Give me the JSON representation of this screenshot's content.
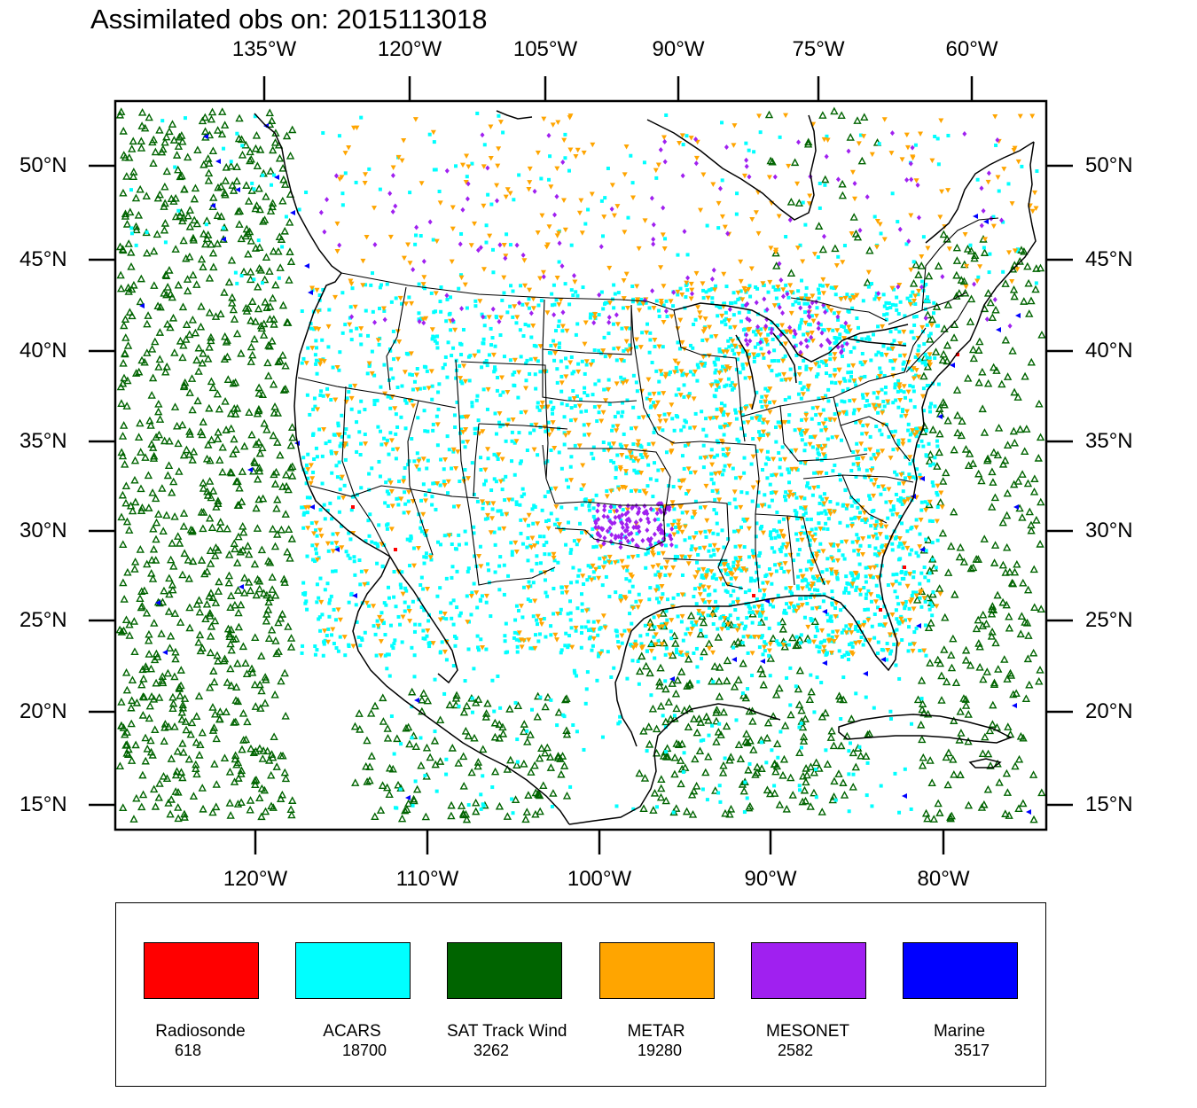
{
  "title": "Assimilated obs on: 2015113018",
  "top_lon_labels": [
    "135°W",
    "120°W",
    "105°W",
    "90°W",
    "75°W",
    "60°W"
  ],
  "bottom_lon_labels": [
    "120°W",
    "110°W",
    "100°W",
    "90°W",
    "80°W"
  ],
  "left_lat_labels": [
    "50°N",
    "45°N",
    "40°N",
    "35°N",
    "30°N",
    "25°N",
    "20°N",
    "15°N"
  ],
  "right_lat_labels": [
    "50°N",
    "45°N",
    "40°N",
    "35°N",
    "30°N",
    "25°N",
    "20°N",
    "15°N"
  ],
  "legend": [
    {
      "name": "Radiosonde",
      "count": "618",
      "color": "#ff0000"
    },
    {
      "name": "ACARS",
      "count": "18700",
      "color": "#00ffff"
    },
    {
      "name": "SAT Track Wind",
      "count": "3262",
      "color": "#006400"
    },
    {
      "name": "METAR",
      "count": "19280",
      "color": "#ffa500"
    },
    {
      "name": "MESONET",
      "count": "2582",
      "color": "#a020f0"
    },
    {
      "name": "Marine",
      "count": "3517",
      "color": "#0000ff"
    }
  ],
  "chart_data": {
    "type": "scatter",
    "title": "Assimilated obs on: 2015113018",
    "xlabel": "",
    "ylabel": "",
    "series": [
      {
        "name": "Radiosonde",
        "count": 618,
        "color": "#ff0000",
        "marker": "square"
      },
      {
        "name": "ACARS",
        "count": 18700,
        "color": "#00ffff",
        "marker": "square"
      },
      {
        "name": "SAT Track Wind",
        "count": 3262,
        "color": "#006400",
        "marker": "triangle-up-open"
      },
      {
        "name": "METAR",
        "count": 19280,
        "color": "#ffa500",
        "marker": "triangle-down"
      },
      {
        "name": "MESONET",
        "count": 2582,
        "color": "#a020f0",
        "marker": "diamond"
      },
      {
        "name": "Marine",
        "count": 3517,
        "color": "#0000ff",
        "marker": "triangle-left"
      }
    ]
  }
}
